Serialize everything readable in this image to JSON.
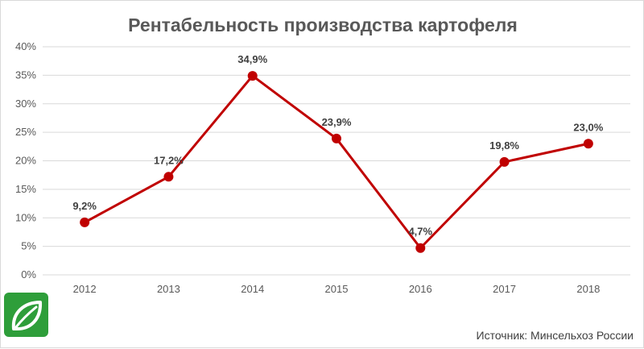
{
  "chart_data": {
    "type": "line",
    "title": "Рентабельность производства картофеля",
    "xlabel": "",
    "ylabel": "",
    "categories": [
      "2012",
      "2013",
      "2014",
      "2015",
      "2016",
      "2017",
      "2018"
    ],
    "series": [
      {
        "values": [
          9.2,
          17.2,
          34.9,
          23.9,
          4.7,
          19.8,
          23.0
        ],
        "data_labels": [
          "9,2%",
          "17,2%",
          "34,9%",
          "23,9%",
          "4,7%",
          "19,8%",
          "23,0%"
        ],
        "color": "#c00000"
      }
    ],
    "ylim": [
      0,
      40
    ],
    "y_ticks": [
      "0%",
      "5%",
      "10%",
      "15%",
      "20%",
      "25%",
      "30%",
      "35%",
      "40%"
    ],
    "grid": true,
    "legend": "none"
  },
  "source": "Источник: Минсельхоз России",
  "logo": {
    "icon": "leaf-logo-icon",
    "background": "#2e9e3a"
  },
  "colors": {
    "line": "#c00000",
    "gridline": "#d9d9d9",
    "text": "#595959"
  }
}
